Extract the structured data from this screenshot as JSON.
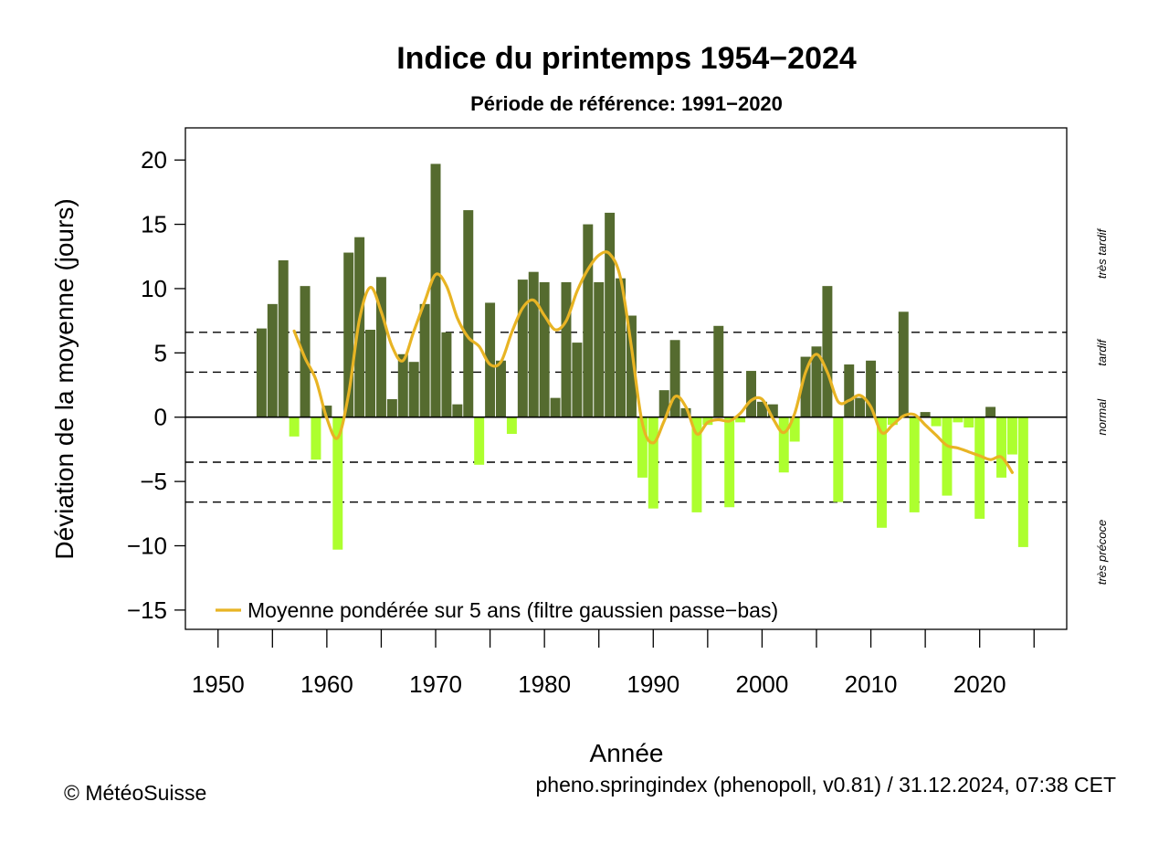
{
  "chart_data": {
    "type": "bar",
    "title": "Indice du printemps 1954−2024",
    "subtitle": "Période de référence: 1991−2020",
    "xlabel": "Année",
    "ylabel": "Déviation de la moyenne (jours)",
    "xlim": [
      1947,
      2028
    ],
    "ylim": [
      -16.5,
      22.5
    ],
    "x_ticks": [
      1950,
      1960,
      1970,
      1980,
      1990,
      2000,
      2010,
      2020
    ],
    "y_ticks": [
      -15,
      -10,
      -5,
      0,
      5,
      10,
      15,
      20
    ],
    "x_tick_labels": [
      "1950",
      "1960",
      "1970",
      "1980",
      "1990",
      "2000",
      "2010",
      "2020"
    ],
    "y_tick_labels": [
      "−15",
      "−10",
      "−5",
      "0",
      "5",
      "10",
      "15",
      "20"
    ],
    "reference_lines": [
      -6.6,
      -3.5,
      3.5,
      6.6
    ],
    "zero_line": 0,
    "bands": [
      {
        "label": "très tardif",
        "y": 12.7
      },
      {
        "label": "tardif",
        "y": 5.0
      },
      {
        "label": "normal",
        "y": 0.0
      },
      {
        "label": "très précoce",
        "y": -10.5
      }
    ],
    "colors": {
      "positive": "#556b2f",
      "negative": "#adff2f",
      "smooth": "#e8b424",
      "reference": "#000000"
    },
    "series": [
      {
        "kind": "bar",
        "x": [
          1954,
          1955,
          1956,
          1957,
          1958,
          1959,
          1960,
          1961,
          1962,
          1963,
          1964,
          1965,
          1966,
          1967,
          1968,
          1969,
          1970,
          1971,
          1972,
          1973,
          1974,
          1975,
          1976,
          1977,
          1978,
          1979,
          1980,
          1981,
          1982,
          1983,
          1984,
          1985,
          1986,
          1987,
          1988,
          1989,
          1990,
          1991,
          1992,
          1993,
          1994,
          1995,
          1996,
          1997,
          1998,
          1999,
          2000,
          2001,
          2002,
          2003,
          2004,
          2005,
          2006,
          2007,
          2008,
          2009,
          2010,
          2011,
          2012,
          2013,
          2014,
          2015,
          2016,
          2017,
          2018,
          2019,
          2020,
          2021,
          2022,
          2023,
          2024
        ],
        "values": [
          6.9,
          8.8,
          12.2,
          -1.5,
          10.2,
          -3.3,
          0.9,
          -10.3,
          12.8,
          14.0,
          6.8,
          10.9,
          1.4,
          4.9,
          4.3,
          8.8,
          19.7,
          6.6,
          1.0,
          16.1,
          -3.7,
          8.9,
          4.4,
          -1.3,
          10.7,
          11.3,
          10.5,
          1.5,
          10.5,
          5.8,
          15.0,
          10.5,
          15.9,
          10.8,
          7.9,
          -4.7,
          -7.1,
          2.1,
          6.0,
          0.7,
          -7.4,
          -0.6,
          7.1,
          -7.0,
          -0.4,
          3.6,
          1.2,
          1.0,
          -4.3,
          -1.9,
          4.7,
          5.5,
          10.2,
          -6.6,
          4.1,
          1.5,
          4.4,
          -8.6,
          -0.6,
          8.2,
          -7.4,
          0.4,
          -0.7,
          -6.1,
          -0.4,
          -0.8,
          -7.9,
          0.8,
          -4.7,
          -2.9,
          -10.1
        ]
      },
      {
        "kind": "line",
        "name": "Moyenne pondérée sur 5 ans (filtre gaussien passe−bas)",
        "x": [
          1957,
          1958,
          1959,
          1960,
          1961,
          1962,
          1963,
          1964,
          1965,
          1966,
          1967,
          1968,
          1969,
          1970,
          1971,
          1972,
          1973,
          1974,
          1975,
          1976,
          1977,
          1978,
          1979,
          1980,
          1981,
          1982,
          1983,
          1984,
          1985,
          1986,
          1987,
          1988,
          1989,
          1990,
          1991,
          1992,
          1993,
          1994,
          1995,
          1996,
          1997,
          1998,
          1999,
          2000,
          2001,
          2002,
          2003,
          2004,
          2005,
          2006,
          2007,
          2008,
          2009,
          2010,
          2011,
          2012,
          2013,
          2014,
          2015,
          2016,
          2017,
          2018,
          2019,
          2020,
          2021,
          2022,
          2023
        ],
        "values": [
          6.7,
          4.6,
          2.9,
          -0.1,
          -1.6,
          1.8,
          7.6,
          10.1,
          8.2,
          5.5,
          4.4,
          6.7,
          9.0,
          11.1,
          10.2,
          7.7,
          6.2,
          5.5,
          4.1,
          4.3,
          6.6,
          8.5,
          9.1,
          7.9,
          6.8,
          7.5,
          9.8,
          11.5,
          12.6,
          12.7,
          10.8,
          5.4,
          -0.5,
          -2.0,
          -0.3,
          1.6,
          0.8,
          -1.3,
          -0.4,
          -0.2,
          -0.3,
          0.3,
          1.3,
          1.4,
          -0.1,
          -1.2,
          0.3,
          3.5,
          4.9,
          3.5,
          1.2,
          1.3,
          1.7,
          0.8,
          -1.2,
          -0.6,
          0.1,
          0.2,
          -0.6,
          -1.4,
          -2.2,
          -2.4,
          -2.7,
          -3.0,
          -3.3,
          -3.1,
          -4.3
        ]
      }
    ]
  },
  "footer": {
    "copyright": "© MétéoSuisse",
    "source": "pheno.springindex (phenopoll, v0.81) / 31.12.2024, 07:38 CET"
  }
}
